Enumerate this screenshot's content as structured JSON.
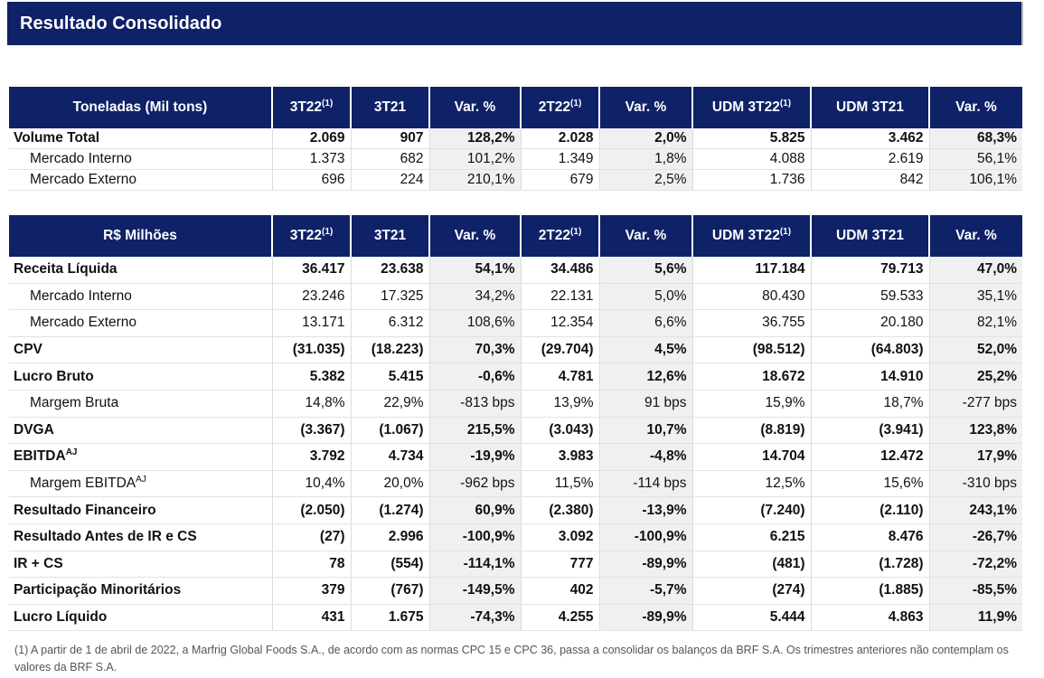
{
  "title": "Resultado Consolidado",
  "volume_table": {
    "headers": [
      "Toneladas (Mil tons)",
      "3T22",
      "3T21",
      "Var. %",
      "2T22",
      "Var. %",
      "UDM 3T22",
      "UDM 3T21",
      "Var. %"
    ],
    "header_sup": [
      "",
      "(1)",
      "",
      "",
      "(1)",
      "",
      "(1)",
      "",
      ""
    ],
    "rows": [
      {
        "label": "Volume Total",
        "bold": true,
        "sub": false,
        "label_sup": "",
        "values": [
          "2.069",
          "907",
          "128,2%",
          "2.028",
          "2,0%",
          "5.825",
          "3.462",
          "68,3%"
        ]
      },
      {
        "label": "Mercado Interno",
        "bold": false,
        "sub": true,
        "label_sup": "",
        "values": [
          "1.373",
          "682",
          "101,2%",
          "1.349",
          "1,8%",
          "4.088",
          "2.619",
          "56,1%"
        ]
      },
      {
        "label": "Mercado Externo",
        "bold": false,
        "sub": true,
        "label_sup": "",
        "values": [
          "696",
          "224",
          "210,1%",
          "679",
          "2,5%",
          "1.736",
          "842",
          "106,1%"
        ]
      }
    ]
  },
  "financial_table": {
    "headers": [
      "R$ Milhões",
      "3T22",
      "3T21",
      "Var. %",
      "2T22",
      "Var. %",
      "UDM 3T22",
      "UDM 3T21",
      "Var. %"
    ],
    "header_sup": [
      "",
      "(1)",
      "",
      "",
      "(1)",
      "",
      "(1)",
      "",
      ""
    ],
    "rows": [
      {
        "label": "Receita Líquida",
        "bold": true,
        "sub": false,
        "label_sup": "",
        "values": [
          "36.417",
          "23.638",
          "54,1%",
          "34.486",
          "5,6%",
          "117.184",
          "79.713",
          "47,0%"
        ]
      },
      {
        "label": "Mercado Interno",
        "bold": false,
        "sub": true,
        "label_sup": "",
        "values": [
          "23.246",
          "17.325",
          "34,2%",
          "22.131",
          "5,0%",
          "80.430",
          "59.533",
          "35,1%"
        ]
      },
      {
        "label": "Mercado Externo",
        "bold": false,
        "sub": true,
        "label_sup": "",
        "values": [
          "13.171",
          "6.312",
          "108,6%",
          "12.354",
          "6,6%",
          "36.755",
          "20.180",
          "82,1%"
        ]
      },
      {
        "label": "CPV",
        "bold": true,
        "sub": false,
        "label_sup": "",
        "values": [
          "(31.035)",
          "(18.223)",
          "70,3%",
          "(29.704)",
          "4,5%",
          "(98.512)",
          "(64.803)",
          "52,0%"
        ]
      },
      {
        "label": "Lucro Bruto",
        "bold": true,
        "sub": false,
        "label_sup": "",
        "values": [
          "5.382",
          "5.415",
          "-0,6%",
          "4.781",
          "12,6%",
          "18.672",
          "14.910",
          "25,2%"
        ]
      },
      {
        "label": "Margem Bruta",
        "bold": false,
        "sub": true,
        "label_sup": "",
        "values": [
          "14,8%",
          "22,9%",
          "-813 bps",
          "13,9%",
          "91 bps",
          "15,9%",
          "18,7%",
          "-277 bps"
        ]
      },
      {
        "label": "DVGA",
        "bold": true,
        "sub": false,
        "label_sup": "",
        "values": [
          "(3.367)",
          "(1.067)",
          "215,5%",
          "(3.043)",
          "10,7%",
          "(8.819)",
          "(3.941)",
          "123,8%"
        ]
      },
      {
        "label": "EBITDA",
        "bold": true,
        "sub": false,
        "label_sup": "AJ",
        "values": [
          "3.792",
          "4.734",
          "-19,9%",
          "3.983",
          "-4,8%",
          "14.704",
          "12.472",
          "17,9%"
        ]
      },
      {
        "label": "Margem EBITDA",
        "bold": false,
        "sub": true,
        "label_sup": "AJ",
        "values": [
          "10,4%",
          "20,0%",
          "-962 bps",
          "11,5%",
          "-114 bps",
          "12,5%",
          "15,6%",
          "-310 bps"
        ]
      },
      {
        "label": "Resultado Financeiro",
        "bold": true,
        "sub": false,
        "label_sup": "",
        "values": [
          "(2.050)",
          "(1.274)",
          "60,9%",
          "(2.380)",
          "-13,9%",
          "(7.240)",
          "(2.110)",
          "243,1%"
        ]
      },
      {
        "label": "Resultado Antes de IR e CS",
        "bold": true,
        "sub": false,
        "label_sup": "",
        "values": [
          "(27)",
          "2.996",
          "-100,9%",
          "3.092",
          "-100,9%",
          "6.215",
          "8.476",
          "-26,7%"
        ]
      },
      {
        "label": "IR + CS",
        "bold": true,
        "sub": false,
        "label_sup": "",
        "values": [
          "78",
          "(554)",
          "-114,1%",
          "777",
          "-89,9%",
          "(481)",
          "(1.728)",
          "-72,2%"
        ]
      },
      {
        "label": "Participação Minoritários",
        "bold": true,
        "sub": false,
        "label_sup": "",
        "values": [
          "379",
          "(767)",
          "-149,5%",
          "402",
          "-5,7%",
          "(274)",
          "(1.885)",
          "-85,5%"
        ]
      },
      {
        "label": "Lucro Líquido",
        "bold": true,
        "sub": false,
        "label_sup": "",
        "values": [
          "431",
          "1.675",
          "-74,3%",
          "4.255",
          "-89,9%",
          "5.444",
          "4.863",
          "11,9%"
        ]
      }
    ]
  },
  "footnote": "(1)  A partir de 1 de abril de 2022, a Marfrig Global Foods S.A., de acordo com as normas CPC 15 e CPC 36, passa a consolidar os balanços da BRF S.A. Os trimestres anteriores não contemplam os valores da BRF S.A."
}
